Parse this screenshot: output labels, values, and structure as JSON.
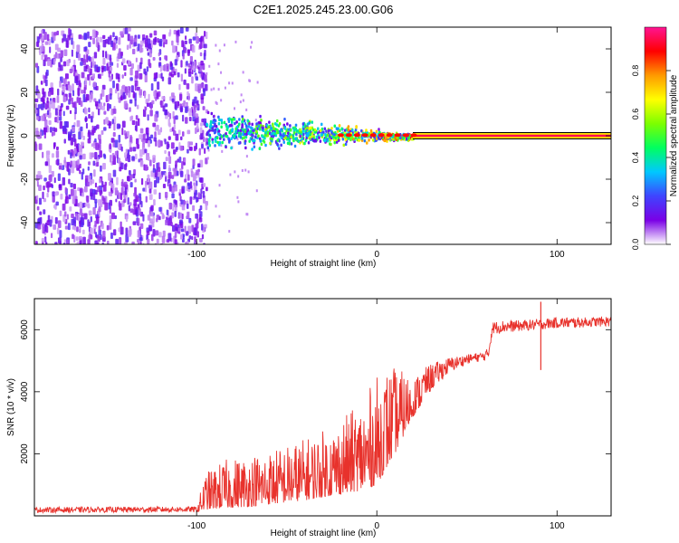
{
  "title": "C2E1.2025.245.23.00.G06",
  "chart_data": [
    {
      "type": "heatmap",
      "title": "C2E1.2025.245.23.00.G06",
      "xlabel": "Height of straight line (km)",
      "ylabel": "Frequency (Hz)",
      "xlim": [
        -190,
        130
      ],
      "ylim": [
        -50,
        50
      ],
      "x_ticks": [
        -100,
        0,
        100
      ],
      "y_ticks": [
        -40,
        -20,
        0,
        20,
        40
      ],
      "colorbar": {
        "label": "Normalized spectral amplitude",
        "range": [
          0,
          1
        ],
        "ticks": [
          0.0,
          0.2,
          0.4,
          0.6,
          0.8
        ],
        "colors": [
          "#ffffff",
          "#7a00e6",
          "#3f44ff",
          "#00c8ff",
          "#00ff60",
          "#7cff00",
          "#ffff00",
          "#ff9a00",
          "#ff0000",
          "#ff1493"
        ]
      },
      "regions": [
        {
          "name": "noise",
          "x_range": [
            -190,
            -95
          ],
          "amplitude": 0.15
        },
        {
          "name": "transition",
          "x_range": [
            -95,
            20
          ],
          "amplitude": 0.5,
          "center_freq": [
            3,
            0
          ]
        },
        {
          "name": "clean_tone",
          "x_range": [
            20,
            130
          ],
          "freq": 0,
          "amplitude": 0.95
        }
      ]
    },
    {
      "type": "line",
      "xlabel": "Height of straight line (km)",
      "ylabel": "SNR (10 * v/v)",
      "xlim": [
        -190,
        130
      ],
      "ylim": [
        0,
        7000
      ],
      "x_ticks": [
        -100,
        0,
        100
      ],
      "y_ticks": [
        2000,
        4000,
        6000
      ],
      "color": "#e8322c",
      "envelope": {
        "x": [
          -190,
          -100,
          -95,
          -85,
          -70,
          -55,
          -40,
          -25,
          -10,
          0,
          5,
          10,
          20,
          30,
          40,
          50,
          60,
          62,
          64,
          70,
          80,
          90,
          100,
          110,
          120,
          130
        ],
        "low": [
          100,
          120,
          200,
          250,
          300,
          400,
          500,
          650,
          800,
          1000,
          1500,
          2000,
          3200,
          4000,
          4600,
          4900,
          5000,
          5050,
          5850,
          5900,
          5950,
          6000,
          6050,
          6050,
          6100,
          6100
        ],
        "high": [
          280,
          300,
          1400,
          1800,
          2000,
          2200,
          2500,
          2900,
          3600,
          4500,
          4800,
          4800,
          4500,
          4900,
          5100,
          5200,
          5300,
          5450,
          6250,
          6300,
          6300,
          6350,
          6400,
          6400,
          6400,
          6450
        ]
      },
      "spikes": [
        {
          "x": 91,
          "y": 6900
        },
        {
          "x": 91,
          "y": 4700
        }
      ]
    }
  ]
}
